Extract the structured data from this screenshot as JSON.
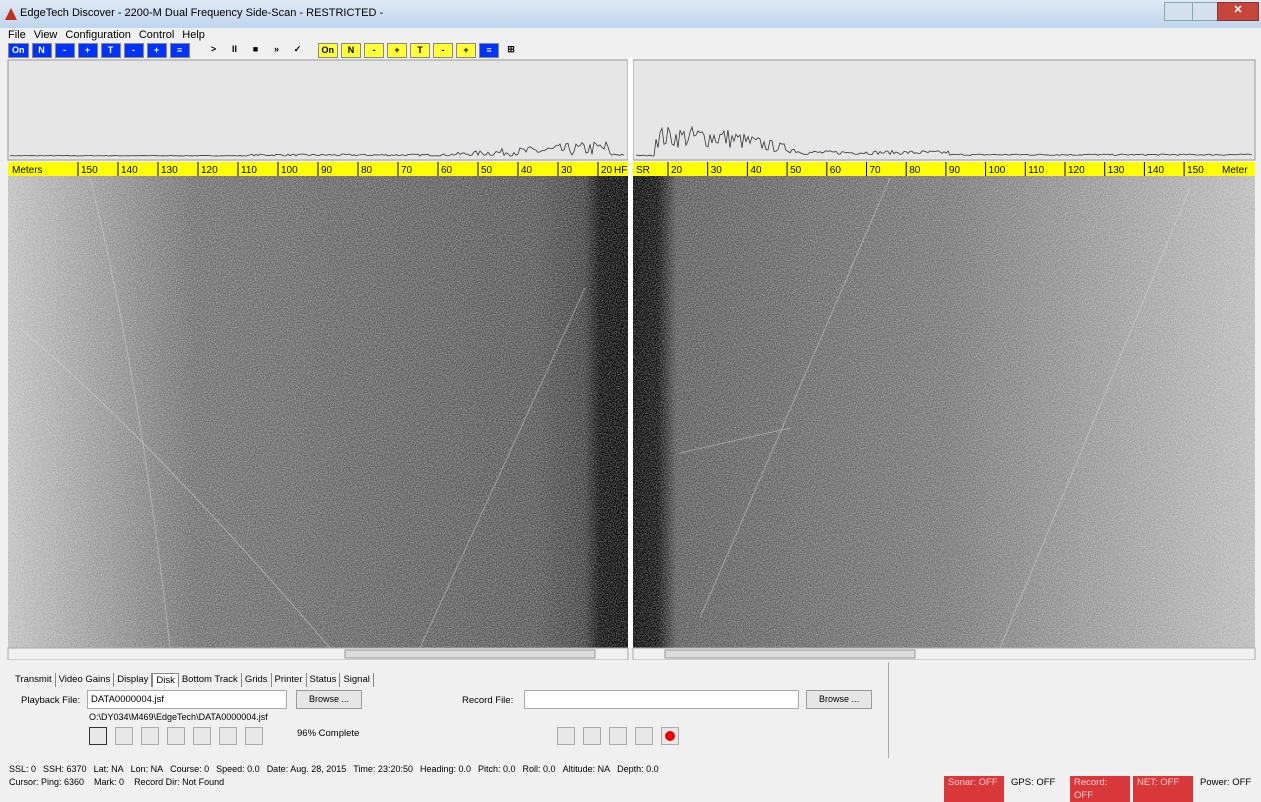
{
  "title_bar": {
    "title": "EdgeTech Discover - 2200-M Dual Frequency Side-Scan - RESTRICTED -"
  },
  "menu": [
    "File",
    "View",
    "Configuration",
    "Control",
    "Help"
  ],
  "toolbar": [
    "On",
    "N",
    "-",
    "+",
    "T",
    "-",
    "+",
    "≡",
    ">",
    "II",
    "■",
    "»",
    "✓",
    "On",
    "N",
    "-",
    "+",
    "T",
    "-",
    "+",
    "≡",
    "⊞"
  ],
  "scale": {
    "left_unit": "Meters",
    "left": [
      "150",
      "140",
      "130",
      "120",
      "110",
      "100",
      "90",
      "80",
      "70",
      "60",
      "50",
      "40",
      "30",
      "20"
    ],
    "left_end": "HF",
    "right_start": "SR",
    "right": [
      "20",
      "30",
      "40",
      "50",
      "60",
      "70",
      "80",
      "90",
      "100",
      "110",
      "120",
      "130",
      "140",
      "150"
    ],
    "right_unit": "Meter"
  },
  "tabs": [
    "Transmit",
    "Video Gains",
    "Display",
    "Disk",
    "Bottom Track",
    "Grids",
    "Printer",
    "Status",
    "Signal"
  ],
  "disk": {
    "playback_label": "Playback File:",
    "playback_file": "DATA0000004.jsf",
    "browse": "Browse ...",
    "playback_path": "O:\\DY034\\M469\\EdgeTech\\DATA0000004.jsf",
    "progress": "96% Complete",
    "record_label": "Record File:",
    "record_browse": "Browse ..."
  },
  "status": {
    "line1": [
      "SSL: 0",
      "SSH: 6370",
      "Lat: NA",
      "Lon: NA",
      "Course: 0",
      "Speed: 0.0",
      "Date: Aug. 28, 2015",
      "Time: 23:20:50",
      "Heading: 0.0",
      "Pitch: 0.0",
      "Roll: 0.0",
      "Altitude: NA",
      "Depth: 0.0"
    ],
    "line2": [
      "Cursor: Ping: 6360",
      "Mark: 0",
      "Record Dir: Not Found"
    ],
    "indicators": [
      "Sonar: OFF",
      "GPS: OFF",
      "Record: OFF",
      "NET: OFF",
      "Power: OFF"
    ]
  }
}
